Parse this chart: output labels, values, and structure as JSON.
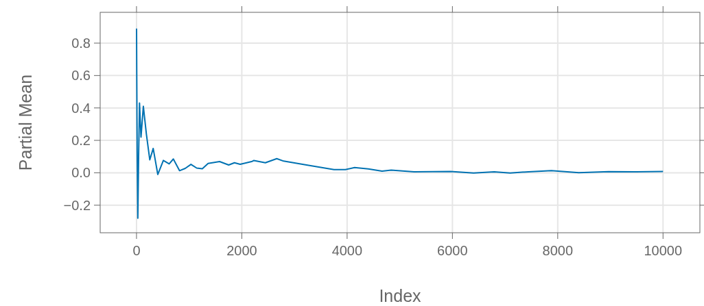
{
  "chart_data": {
    "type": "line",
    "xlabel": "Index",
    "ylabel": "Partial Mean",
    "x": [
      1,
      5,
      12,
      25,
      40,
      57,
      85,
      130,
      187,
      252,
      317,
      404,
      510,
      620,
      700,
      817,
      925,
      1034,
      1143,
      1250,
      1360,
      1578,
      1751,
      1860,
      1969,
      2186,
      2230,
      2447,
      2664,
      2794,
      3229,
      3751,
      3968,
      4142,
      4403,
      4664,
      4837,
      5272,
      5967,
      6402,
      6793,
      7097,
      7445,
      7879,
      8400,
      8966,
      9488,
      10000
    ],
    "series": [
      {
        "color": "#0072b2",
        "values": [
          0.89,
          0.59,
          0.14,
          -0.28,
          0.1,
          0.43,
          0.22,
          0.41,
          0.24,
          0.08,
          0.15,
          -0.01,
          0.076,
          0.055,
          0.085,
          0.013,
          0.027,
          0.052,
          0.029,
          0.025,
          0.058,
          0.069,
          0.048,
          0.062,
          0.052,
          0.069,
          0.076,
          0.062,
          0.087,
          0.072,
          0.048,
          0.02,
          0.02,
          0.032,
          0.024,
          0.01,
          0.016,
          0.006,
          0.008,
          -0.001,
          0.006,
          -0.001,
          0.006,
          0.013,
          0.001,
          0.007,
          0.006,
          0.008
        ]
      }
    ],
    "xlim": [
      -690,
      10700
    ],
    "ylim": [
      -0.37,
      0.99
    ],
    "xticks": [
      0,
      2000,
      4000,
      6000,
      8000,
      10000
    ],
    "yticks": [
      {
        "value": -0.2,
        "label": "−0.2"
      },
      {
        "value": 0,
        "label": "0.0"
      },
      {
        "value": 0.2,
        "label": "0.2"
      },
      {
        "value": 0.4,
        "label": "0.4"
      },
      {
        "value": 0.6,
        "label": "0.6"
      },
      {
        "value": 0.8,
        "label": "0.8"
      }
    ],
    "grid": true
  }
}
